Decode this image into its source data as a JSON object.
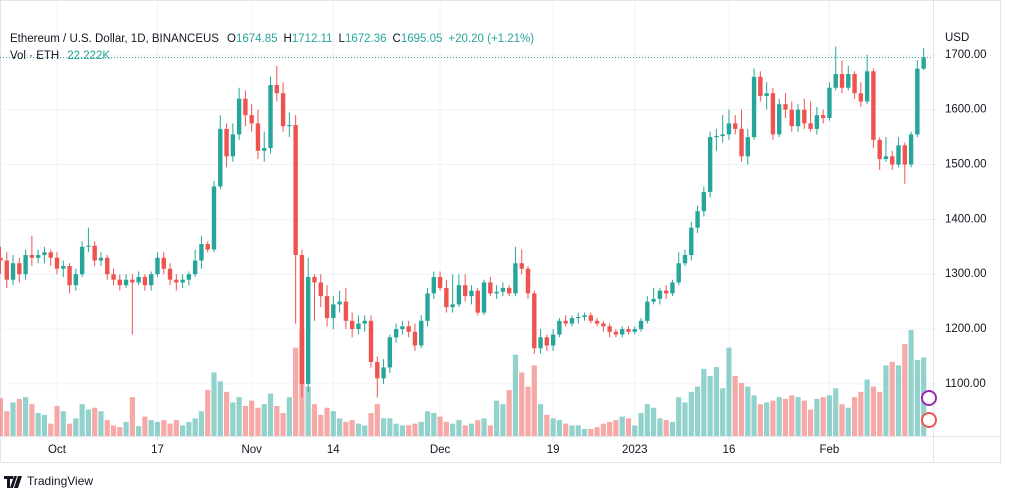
{
  "chart_data": {
    "type": "candlestick",
    "title": "Ethereum / U.S. Dollar, 1D, BINANCEUS",
    "ohlc_legend": [
      [
        "O",
        "1674.85"
      ],
      [
        "H",
        "1712.11"
      ],
      [
        "L",
        "1672.36"
      ],
      [
        "C",
        "1695.05"
      ]
    ],
    "change": "+20.20 (+1.21%)",
    "volume_title": "Vol · ETH",
    "volume_last": "22.222K",
    "currency": "USD",
    "branding": "TradingView",
    "up_color": "#26a69a",
    "down_color": "#ef5350",
    "grid": true,
    "price_line": true,
    "ylim": [
      1005,
      1800
    ],
    "yticks": [
      {
        "value": 1100,
        "label": "1100.00"
      },
      {
        "value": 1200,
        "label": "1200.00"
      },
      {
        "value": 1300,
        "label": "1300.00"
      },
      {
        "value": 1400,
        "label": "1400.00"
      },
      {
        "value": 1500,
        "label": "1500.00"
      },
      {
        "value": 1600,
        "label": "1600.00"
      },
      {
        "value": 1700,
        "label": "1700.00"
      }
    ],
    "xticks": [
      {
        "value": 9,
        "label": "Oct"
      },
      {
        "value": 25,
        "label": "17"
      },
      {
        "value": 40,
        "label": "Nov"
      },
      {
        "value": 53,
        "label": "14"
      },
      {
        "value": 70,
        "label": "Dec"
      },
      {
        "value": 88,
        "label": "19"
      },
      {
        "value": 101,
        "label": "2023"
      },
      {
        "value": 116,
        "label": "16"
      },
      {
        "value": 132,
        "label": "Feb"
      }
    ],
    "open": [
      1330,
      1325,
      1290,
      1320,
      1300,
      1335,
      1330,
      1335,
      1340,
      1330,
      1310,
      1315,
      1280,
      1300,
      1350,
      1352,
      1325,
      1330,
      1300,
      1290,
      1280,
      1290,
      1285,
      1295,
      1280,
      1300,
      1330,
      1310,
      1290,
      1285,
      1290,
      1300,
      1325,
      1355,
      1345,
      1460,
      1565,
      1515,
      1555,
      1620,
      1590,
      1575,
      1525,
      1530,
      1645,
      1630,
      1570,
      1572,
      1335,
      1100,
      1295,
      1285,
      1260,
      1220,
      1245,
      1250,
      1215,
      1200,
      1210,
      1215,
      1140,
      1110,
      1130,
      1185,
      1200,
      1205,
      1195,
      1170,
      1215,
      1265,
      1295,
      1275,
      1240,
      1245,
      1280,
      1260,
      1270,
      1230,
      1285,
      1265,
      1268,
      1275,
      1265,
      1320,
      1310,
      1265,
      1165,
      1185,
      1170,
      1190,
      1215,
      1210,
      1220,
      1222,
      1225,
      1215,
      1210,
      1205,
      1195,
      1190,
      1200,
      1195,
      1200,
      1215,
      1250,
      1255,
      1270,
      1265,
      1285,
      1320,
      1335,
      1385,
      1415,
      1450,
      1550,
      1552,
      1555,
      1575,
      1565,
      1515,
      1550,
      1660,
      1625,
      1630,
      1555,
      1610,
      1600,
      1570,
      1600,
      1575,
      1565,
      1590,
      1585,
      1640,
      1665,
      1640,
      1665,
      1630,
      1615,
      1670,
      1545,
      1510,
      1515,
      1500,
      1535,
      1500,
      1555,
      1674.85
    ],
    "high": [
      1350,
      1340,
      1335,
      1330,
      1345,
      1370,
      1345,
      1350,
      1345,
      1340,
      1325,
      1320,
      1310,
      1360,
      1385,
      1360,
      1340,
      1335,
      1310,
      1300,
      1300,
      1300,
      1305,
      1300,
      1305,
      1340,
      1340,
      1320,
      1300,
      1300,
      1305,
      1345,
      1370,
      1360,
      1470,
      1590,
      1575,
      1575,
      1640,
      1635,
      1610,
      1600,
      1560,
      1660,
      1680,
      1650,
      1595,
      1590,
      1345,
      1330,
      1300,
      1300,
      1280,
      1260,
      1270,
      1275,
      1230,
      1225,
      1225,
      1225,
      1150,
      1145,
      1190,
      1210,
      1215,
      1215,
      1210,
      1225,
      1275,
      1305,
      1305,
      1290,
      1300,
      1300,
      1300,
      1280,
      1275,
      1290,
      1295,
      1280,
      1285,
      1280,
      1350,
      1345,
      1315,
      1270,
      1200,
      1190,
      1200,
      1220,
      1225,
      1225,
      1230,
      1230,
      1230,
      1220,
      1215,
      1210,
      1200,
      1205,
      1205,
      1205,
      1220,
      1260,
      1275,
      1275,
      1280,
      1290,
      1340,
      1345,
      1395,
      1425,
      1460,
      1560,
      1565,
      1590,
      1600,
      1590,
      1600,
      1565,
      1675,
      1670,
      1650,
      1640,
      1620,
      1630,
      1615,
      1610,
      1620,
      1615,
      1605,
      1600,
      1650,
      1715,
      1690,
      1680,
      1670,
      1650,
      1700,
      1675,
      1550,
      1550,
      1525,
      1550,
      1540,
      1560,
      1690,
      1712.11
    ],
    "low": [
      1300,
      1275,
      1280,
      1285,
      1290,
      1315,
      1320,
      1320,
      1315,
      1300,
      1295,
      1265,
      1270,
      1295,
      1340,
      1315,
      1315,
      1290,
      1280,
      1270,
      1275,
      1190,
      1280,
      1270,
      1270,
      1295,
      1300,
      1280,
      1270,
      1275,
      1280,
      1295,
      1310,
      1340,
      1340,
      1455,
      1495,
      1505,
      1545,
      1570,
      1560,
      1510,
      1505,
      1520,
      1615,
      1560,
      1550,
      1210,
      1075,
      1085,
      1215,
      1240,
      1205,
      1200,
      1230,
      1200,
      1185,
      1190,
      1195,
      1130,
      1075,
      1100,
      1120,
      1175,
      1190,
      1185,
      1160,
      1165,
      1205,
      1255,
      1270,
      1230,
      1230,
      1240,
      1250,
      1245,
      1225,
      1225,
      1260,
      1255,
      1260,
      1260,
      1260,
      1300,
      1255,
      1155,
      1155,
      1160,
      1160,
      1185,
      1205,
      1205,
      1210,
      1215,
      1210,
      1205,
      1195,
      1185,
      1185,
      1185,
      1190,
      1190,
      1195,
      1210,
      1245,
      1245,
      1255,
      1260,
      1280,
      1315,
      1325,
      1375,
      1405,
      1440,
      1525,
      1540,
      1545,
      1555,
      1505,
      1500,
      1545,
      1615,
      1600,
      1545,
      1550,
      1585,
      1560,
      1560,
      1565,
      1560,
      1555,
      1575,
      1580,
      1635,
      1630,
      1635,
      1620,
      1605,
      1610,
      1530,
      1490,
      1505,
      1490,
      1495,
      1465,
      1495,
      1550,
      1672.36
    ],
    "close": [
      1325,
      1290,
      1320,
      1300,
      1335,
      1330,
      1335,
      1340,
      1330,
      1310,
      1315,
      1280,
      1300,
      1350,
      1352,
      1325,
      1330,
      1300,
      1290,
      1280,
      1290,
      1285,
      1295,
      1280,
      1300,
      1330,
      1310,
      1290,
      1285,
      1290,
      1300,
      1325,
      1355,
      1345,
      1460,
      1565,
      1515,
      1555,
      1620,
      1590,
      1575,
      1525,
      1530,
      1645,
      1630,
      1570,
      1572,
      1335,
      1100,
      1295,
      1285,
      1260,
      1220,
      1245,
      1250,
      1215,
      1200,
      1210,
      1215,
      1140,
      1110,
      1130,
      1185,
      1200,
      1205,
      1195,
      1170,
      1215,
      1265,
      1295,
      1275,
      1240,
      1245,
      1280,
      1260,
      1270,
      1230,
      1285,
      1265,
      1268,
      1275,
      1265,
      1320,
      1310,
      1265,
      1165,
      1185,
      1170,
      1190,
      1215,
      1210,
      1220,
      1222,
      1225,
      1215,
      1210,
      1205,
      1195,
      1190,
      1200,
      1195,
      1200,
      1215,
      1250,
      1255,
      1270,
      1265,
      1285,
      1320,
      1335,
      1385,
      1415,
      1450,
      1550,
      1552,
      1555,
      1575,
      1565,
      1515,
      1550,
      1660,
      1625,
      1630,
      1555,
      1610,
      1600,
      1570,
      1600,
      1575,
      1565,
      1590,
      1585,
      1640,
      1665,
      1640,
      1665,
      1630,
      1615,
      1670,
      1545,
      1510,
      1515,
      1500,
      1535,
      1500,
      1555,
      1674.85,
      1695.05
    ],
    "volume": [
      10700,
      7000,
      9500,
      10500,
      11000,
      9000,
      6500,
      6000,
      3500,
      8500,
      7000,
      3500,
      5000,
      9000,
      7500,
      8000,
      7000,
      4500,
      3000,
      2500,
      4000,
      11000,
      2800,
      5500,
      4500,
      4000,
      4500,
      3500,
      4500,
      3000,
      4000,
      5000,
      7000,
      13000,
      18000,
      15500,
      12500,
      9500,
      11000,
      8500,
      10000,
      8000,
      9000,
      12000,
      8500,
      6500,
      11000,
      25000,
      30000,
      14000,
      9000,
      6000,
      8000,
      7000,
      5000,
      4000,
      4500,
      3500,
      3000,
      6500,
      9000,
      5000,
      5000,
      3500,
      3000,
      3000,
      3500,
      4000,
      7000,
      6500,
      5500,
      4000,
      3500,
      4500,
      3000,
      3500,
      4500,
      5000,
      3000,
      10000,
      9000,
      13000,
      23000,
      18000,
      14000,
      20000,
      9000,
      6000,
      5000,
      4500,
      3500,
      3000,
      3000,
      2000,
      2000,
      2500,
      3500,
      4000,
      4500,
      5500,
      5000,
      3000,
      6500,
      9000,
      8000,
      5000,
      4500,
      4000,
      11000,
      9500,
      12500,
      14000,
      19000,
      17000,
      19500,
      13500,
      25000,
      17000,
      15000,
      14000,
      11500,
      9000,
      9500,
      10000,
      11000,
      10500,
      11500,
      11000,
      10000,
      7500,
      10500,
      11000,
      11500,
      13500,
      9000,
      8000,
      11000,
      12500,
      16000,
      14000,
      12500,
      20000,
      21000,
      20000,
      26000,
      30000,
      21500,
      22222
    ]
  }
}
